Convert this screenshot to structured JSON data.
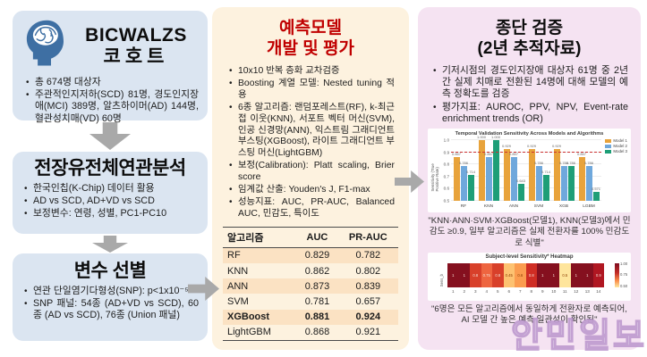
{
  "watermark": "안민일보",
  "left": {
    "box1": {
      "title_line1": "BICWALZS",
      "title_line2": "코호트",
      "bullets": [
        "총 674명 대상자",
        "주관적인지저하(SCD) 81명, 경도인지장애(MCI) 389명, 알츠하이머(AD) 144명, 혈관성치매(VD) 60명"
      ]
    },
    "box2": {
      "title": "전장유전체연관분석",
      "bullets": [
        "한국인칩(K-Chip) 데이터 활용",
        "AD vs SCD, AD+VD vs SCD",
        "보정변수: 연령, 성별, PC1-PC10"
      ]
    },
    "box3": {
      "title": "변수 선별",
      "bullets": [
        "연관 단일염기다형성(SNP): p<1x10⁻⁵",
        "SNP 패널: 54종 (AD+VD vs SCD), 60종 (AD vs SCD), 76종 (Union 패널)"
      ]
    }
  },
  "middle": {
    "title_line1": "예측모델",
    "title_line2": "개발 및 평가",
    "bullets": [
      "10x10 반복 층화 교차검증",
      "Boosting 계열 모델: Nested tuning 적용",
      "6종 알고리즘: 랜덤포레스트(RF), k-최근접 이웃(KNN), 서포트 벡터 머신(SVM), 인공 신경망(ANN), 익스트림 그래디언트 부스팅(XGBoost), 라이트 그래디언트 부스팅 머신(LightGBM)",
      "보정(Calibration): Platt scaling, Brier score",
      "임계값 산출: Youden's J, F1-max",
      "성능지표: AUC, PR-AUC, Balanced AUC, 민감도, 특이도"
    ],
    "table": {
      "headers": [
        "알고리즘",
        "AUC",
        "PR-AUC"
      ],
      "rows": [
        [
          "RF",
          "0.829",
          "0.782"
        ],
        [
          "KNN",
          "0.862",
          "0.802"
        ],
        [
          "ANN",
          "0.873",
          "0.839"
        ],
        [
          "SVM",
          "0.781",
          "0.657"
        ],
        [
          "XGBoost",
          "0.881",
          "0.924"
        ],
        [
          "LightGBM",
          "0.868",
          "0.921"
        ]
      ],
      "bold_row": "XGBoost"
    }
  },
  "right": {
    "title_line1": "종단 검증",
    "title_line2": "(2년 추적자료)",
    "bullets": [
      "기저시점의 경도인지장애 대상자 61명 중 2년간 실제 치매로 전환된 14명에 대해 모델의 예측 정확도를 검증",
      "평가지표: AUROC, PPV, NPV, Event-rate enrichment trends (OR)"
    ],
    "caption1": "\"KNN·ANN·SVM·XGBoost(모델1), KNN(모델3)에서 민감도 ≥0.9, 일부 알고리즘은 실제 전환자를 100% 민감도로 식별\"",
    "caption2": "\"6명은 모든 알고리즘에서 동일하게 전환자로 예측되어, AI 모델 간 높은 예측 일관성이 확인됨\""
  },
  "chart_data": [
    {
      "type": "bar",
      "title": "Temporal Validation Sensitivity Across Models and Algorithms",
      "categories": [
        "RF",
        "KNN",
        "ANN",
        "SVM",
        "XGB",
        "LGBM"
      ],
      "series": [
        {
          "name": "Model 1",
          "color": "#E8A33B",
          "values": [
            0.857,
            1.0,
            0.929,
            0.929,
            0.929,
            0.857
          ]
        },
        {
          "name": "Model 2",
          "color": "#6FA8DC",
          "values": [
            0.786,
            0.857,
            0.857,
            0.786,
            0.786,
            0.786
          ]
        },
        {
          "name": "Model 3",
          "color": "#1E9E77",
          "values": [
            0.714,
            1.0,
            0.643,
            0.714,
            0.786,
            0.571
          ]
        }
      ],
      "xlabel": "",
      "ylabel": "Sensitivity (True Positive Rate)",
      "ylim": [
        0.5,
        1.0
      ],
      "yticks": [
        0.5,
        0.6,
        0.7,
        0.8,
        0.9,
        1.0
      ],
      "ref_line": {
        "value": 0.9,
        "color": "#cc3333",
        "style": "dashed"
      },
      "legend_position": "top-right",
      "grid": true
    },
    {
      "type": "heatmap",
      "title": "Subject-level Sensitivity* Heatmap",
      "row_label": "Sens_b",
      "x": [
        1,
        2,
        3,
        4,
        5,
        6,
        7,
        8,
        9,
        10,
        11,
        12,
        13,
        14
      ],
      "values": [
        1,
        1,
        0.8,
        0.75,
        0.8,
        0.45,
        0.6,
        0.8,
        1,
        1,
        0.5,
        1,
        1,
        0.9
      ],
      "value_labels": [
        "1",
        "1",
        "0.8",
        "0.75",
        "0.8",
        "0.45",
        "0.6",
        "0.8",
        "1",
        "1",
        "0.5",
        "1",
        "1",
        "0.9"
      ],
      "cell_colors": [
        "#85101f",
        "#85101f",
        "#d8402a",
        "#ee6540",
        "#d8402a",
        "#fdc271",
        "#fb9c4f",
        "#cf2d24",
        "#85101f",
        "#85101f",
        "#fee59c",
        "#85101f",
        "#85101f",
        "#b01722"
      ],
      "colorbar": {
        "labels": [
          "1.00",
          "0.75",
          "0.50"
        ]
      }
    }
  ],
  "colors": {
    "left_box_bg": "#dbe5f1",
    "middle_box_bg": "#fdf2df",
    "right_box_bg": "#f5e3f2",
    "middle_title": "#c00000",
    "table_row_shade": "#fbe2c3",
    "arrow_gray": "#a9a9a9",
    "brain_icon_blue": "#3e6fa3"
  }
}
